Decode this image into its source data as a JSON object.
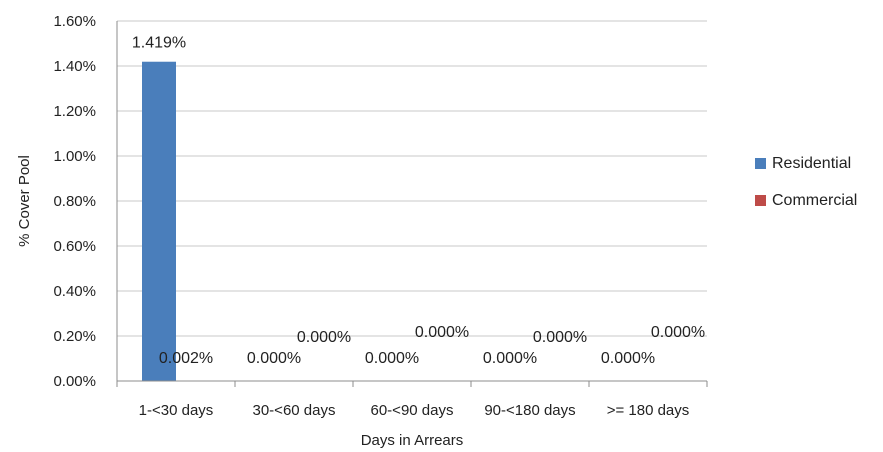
{
  "chart_data": {
    "type": "bar",
    "categories": [
      "1-<30 days",
      "30-<60 days",
      "60-<90 days",
      "90-<180 days",
      ">= 180 days"
    ],
    "series": [
      {
        "name": "Residential",
        "color": "#4a7ebb",
        "values": [
          1.419,
          0.0,
          0.0,
          0.0,
          0.0
        ],
        "labels": [
          "1.419%",
          "0.000%",
          "0.000%",
          "0.000%",
          "0.000%"
        ]
      },
      {
        "name": "Commercial",
        "color": "#be4b48",
        "values": [
          0.002,
          0.0,
          0.0,
          0.0,
          0.0
        ],
        "labels": [
          "0.002%",
          "0.000%",
          "0.000%",
          "0.000%",
          "0.000%"
        ]
      }
    ],
    "xlabel": "Days in Arrears",
    "ylabel": "% Cover Pool",
    "ylim": [
      0,
      1.6
    ],
    "yticks": [
      0,
      0.2,
      0.4,
      0.6,
      0.8,
      1.0,
      1.2,
      1.4,
      1.6
    ],
    "ytick_labels": [
      "0.00%",
      "0.20%",
      "0.40%",
      "0.60%",
      "0.80%",
      "1.00%",
      "1.20%",
      "1.40%",
      "1.60%"
    ],
    "grid": true,
    "legend_position": "right"
  }
}
